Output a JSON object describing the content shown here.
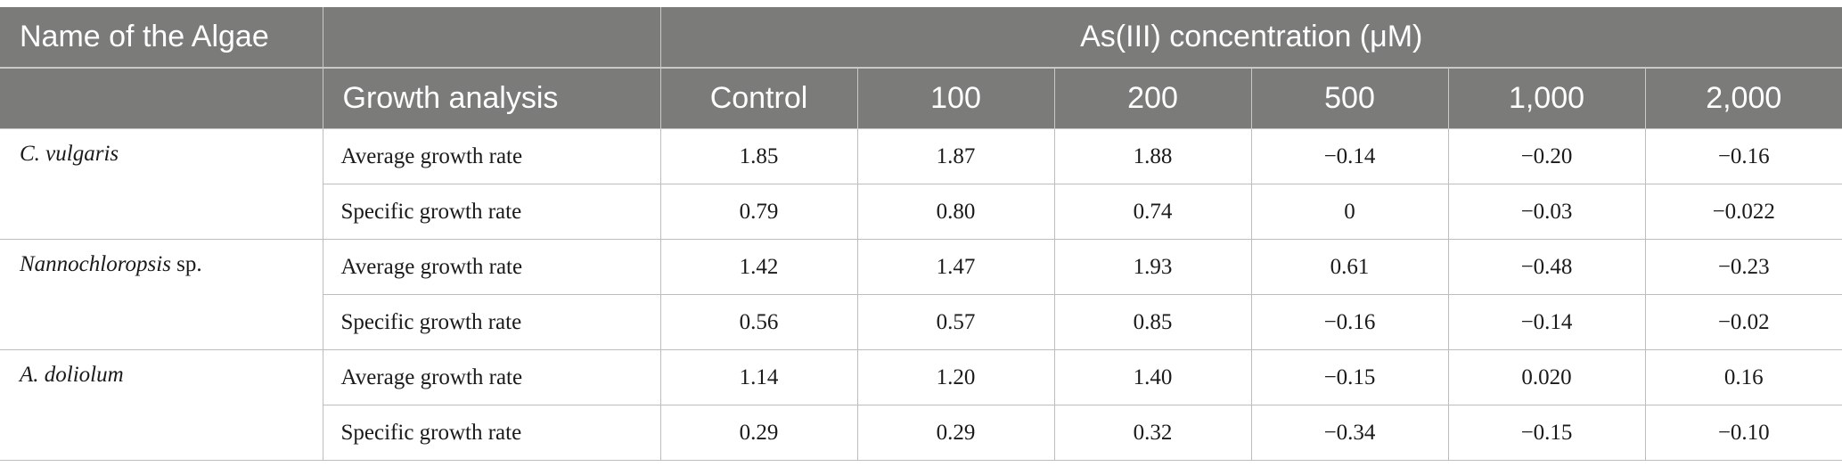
{
  "header": {
    "name_col": "Name of the Algae",
    "group": "As(III) concentration (μM)",
    "param_col": "Growth analysis",
    "concentrations": [
      "Control",
      "100",
      "200",
      "500",
      "1,000",
      "2,000"
    ]
  },
  "rows": [
    {
      "name_italic": "C. vulgaris",
      "name_suffix": "",
      "params": [
        {
          "label": "Average growth rate",
          "values": [
            "1.85",
            "1.87",
            "1.88",
            "−0.14",
            "−0.20",
            "−0.16"
          ]
        },
        {
          "label": "Specific growth rate",
          "values": [
            "0.79",
            "0.80",
            "0.74",
            "0",
            "−0.03",
            "−0.022"
          ]
        }
      ]
    },
    {
      "name_italic": "Nannochloropsis",
      "name_suffix": " sp.",
      "params": [
        {
          "label": "Average growth rate",
          "values": [
            "1.42",
            "1.47",
            "1.93",
            "0.61",
            "−0.48",
            "−0.23"
          ]
        },
        {
          "label": "Specific growth rate",
          "values": [
            "0.56",
            "0.57",
            "0.85",
            "−0.16",
            "−0.14",
            "−0.02"
          ]
        }
      ]
    },
    {
      "name_italic": "A. doliolum",
      "name_suffix": "",
      "params": [
        {
          "label": "Average growth rate",
          "values": [
            "1.14",
            "1.20",
            "1.40",
            "−0.15",
            "0.020",
            "0.16"
          ]
        },
        {
          "label": "Specific growth rate",
          "values": [
            "0.29",
            "0.29",
            "0.32",
            "−0.34",
            "−0.15",
            "−0.10"
          ]
        }
      ]
    }
  ]
}
